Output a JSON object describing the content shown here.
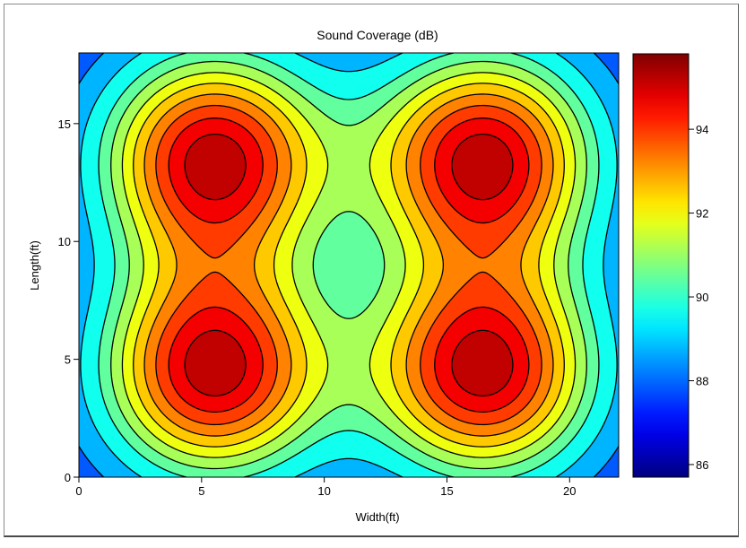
{
  "chart_data": {
    "type": "heatmap",
    "subtype": "filled-contour",
    "title": "Sound Coverage (dB)",
    "xlabel": "Width(ft)",
    "ylabel": "Length(ft)",
    "xlim": [
      0,
      22
    ],
    "ylim": [
      0,
      18
    ],
    "xticks": [
      0,
      5,
      10,
      15,
      20
    ],
    "yticks": [
      0,
      5,
      10,
      15
    ],
    "colorbar": {
      "range": [
        85.7,
        95.8
      ],
      "ticks": [
        86,
        88,
        90,
        92,
        94
      ],
      "colormap": "jet",
      "placement": "right"
    },
    "contour_levels": [
      87.4,
      88.3,
      89.2,
      90.1,
      90.8,
      91.5,
      92.2,
      92.9,
      93.6,
      94.3,
      95.0
    ],
    "sources": [
      {
        "x": 5.5,
        "y": 4.5,
        "peak_db": 95.3
      },
      {
        "x": 16.5,
        "y": 4.5,
        "peak_db": 95.3
      },
      {
        "x": 5.5,
        "y": 13.5,
        "peak_db": 95.3
      },
      {
        "x": 16.5,
        "y": 13.5,
        "peak_db": 95.3
      }
    ],
    "background_db": 87.0,
    "grid": false,
    "legend": "none"
  },
  "colors": {
    "frame_border": "#8a8a8a",
    "contour_line": "#000000"
  }
}
